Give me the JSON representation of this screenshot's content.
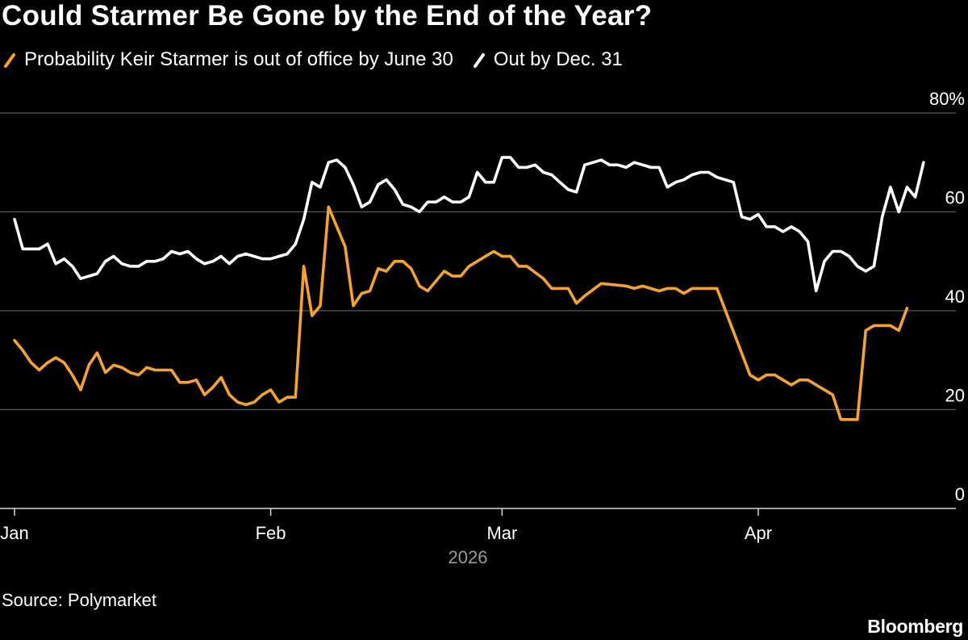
{
  "title": "Could Starmer Be Gone by the End of the Year?",
  "legend": [
    {
      "label": "Probability Keir Starmer is out of office by June 30",
      "color": "#f5a234"
    },
    {
      "label": "Out by Dec. 31",
      "color": "#ffffff"
    }
  ],
  "source": "Source: Polymarket",
  "brand": "Bloomberg",
  "chart_data": {
    "type": "line",
    "title": "Could Starmer Be Gone by the End of the Year?",
    "ylabel": "",
    "xlabel": "2026",
    "ylim": [
      0,
      80
    ],
    "y_ticks": [
      {
        "value": 80,
        "label": "80%"
      },
      {
        "value": 60,
        "label": "60"
      },
      {
        "value": 40,
        "label": "40"
      },
      {
        "value": 20,
        "label": "20"
      },
      {
        "value": 0,
        "label": "0"
      }
    ],
    "x_ticks": [
      {
        "date": "2026-01-01",
        "label": "Jan"
      },
      {
        "date": "2026-02-01",
        "label": "Feb"
      },
      {
        "date": "2026-03-01",
        "label": "Mar"
      },
      {
        "date": "2026-04-01",
        "label": "Apr"
      }
    ],
    "x_range": [
      "2026-01-01",
      "2026-04-20"
    ],
    "grid": true,
    "legend_position": "top",
    "series": [
      {
        "name": "Probability Keir Starmer is out of office by June 30",
        "color": "#f5a234",
        "points": [
          [
            "2026-01-01",
            34
          ],
          [
            "2026-01-02",
            32
          ],
          [
            "2026-01-03",
            29.5
          ],
          [
            "2026-01-04",
            28
          ],
          [
            "2026-01-05",
            29.5
          ],
          [
            "2026-01-06",
            30.5
          ],
          [
            "2026-01-07",
            29.5
          ],
          [
            "2026-01-08",
            27
          ],
          [
            "2026-01-09",
            24
          ],
          [
            "2026-01-10",
            29
          ],
          [
            "2026-01-11",
            31.5
          ],
          [
            "2026-01-12",
            27.5
          ],
          [
            "2026-01-13",
            29
          ],
          [
            "2026-01-14",
            28.5
          ],
          [
            "2026-01-15",
            27.5
          ],
          [
            "2026-01-16",
            27
          ],
          [
            "2026-01-17",
            28.5
          ],
          [
            "2026-01-18",
            28
          ],
          [
            "2026-01-19",
            28
          ],
          [
            "2026-01-20",
            28
          ],
          [
            "2026-01-21",
            25.5
          ],
          [
            "2026-01-22",
            25.5
          ],
          [
            "2026-01-23",
            26
          ],
          [
            "2026-01-24",
            23
          ],
          [
            "2026-01-25",
            24.5
          ],
          [
            "2026-01-26",
            26.5
          ],
          [
            "2026-01-27",
            23
          ],
          [
            "2026-01-28",
            21.5
          ],
          [
            "2026-01-29",
            21
          ],
          [
            "2026-01-30",
            21.5
          ],
          [
            "2026-01-31",
            23
          ],
          [
            "2026-02-01",
            24
          ],
          [
            "2026-02-02",
            21.5
          ],
          [
            "2026-02-03",
            22.5
          ],
          [
            "2026-02-04",
            22.5
          ],
          [
            "2026-02-05",
            49
          ],
          [
            "2026-02-06",
            39
          ],
          [
            "2026-02-07",
            41
          ],
          [
            "2026-02-08",
            61
          ],
          [
            "2026-02-10",
            53
          ],
          [
            "2026-02-11",
            41
          ],
          [
            "2026-02-12",
            43.5
          ],
          [
            "2026-02-13",
            44
          ],
          [
            "2026-02-14",
            48.5
          ],
          [
            "2026-02-15",
            48
          ],
          [
            "2026-02-16",
            50
          ],
          [
            "2026-02-17",
            50
          ],
          [
            "2026-02-18",
            48.5
          ],
          [
            "2026-02-19",
            45
          ],
          [
            "2026-02-20",
            44
          ],
          [
            "2026-02-22",
            48
          ],
          [
            "2026-02-23",
            47
          ],
          [
            "2026-02-24",
            47
          ],
          [
            "2026-02-25",
            49
          ],
          [
            "2026-02-27",
            51
          ],
          [
            "2026-02-28",
            52
          ],
          [
            "2026-03-01",
            51
          ],
          [
            "2026-03-02",
            51
          ],
          [
            "2026-03-03",
            49
          ],
          [
            "2026-03-04",
            49
          ],
          [
            "2026-03-06",
            46.5
          ],
          [
            "2026-03-07",
            44.5
          ],
          [
            "2026-03-09",
            44.5
          ],
          [
            "2026-03-10",
            41.5
          ],
          [
            "2026-03-11",
            43
          ],
          [
            "2026-03-13",
            45.5
          ],
          [
            "2026-03-16",
            45
          ],
          [
            "2026-03-17",
            44.5
          ],
          [
            "2026-03-18",
            45
          ],
          [
            "2026-03-20",
            44
          ],
          [
            "2026-03-21",
            44.5
          ],
          [
            "2026-03-22",
            44.5
          ],
          [
            "2026-03-23",
            43.5
          ],
          [
            "2026-03-24",
            44.5
          ],
          [
            "2026-03-27",
            44.5
          ],
          [
            "2026-03-31",
            27
          ],
          [
            "2026-04-01",
            26
          ],
          [
            "2026-04-02",
            27
          ],
          [
            "2026-04-03",
            27
          ],
          [
            "2026-04-04",
            26
          ],
          [
            "2026-04-05",
            25
          ],
          [
            "2026-04-06",
            26
          ],
          [
            "2026-04-07",
            26
          ],
          [
            "2026-04-10",
            23
          ],
          [
            "2026-04-11",
            18
          ],
          [
            "2026-04-13",
            18
          ],
          [
            "2026-04-14",
            36
          ],
          [
            "2026-04-15",
            37
          ],
          [
            "2026-04-17",
            37
          ],
          [
            "2026-04-18",
            36
          ],
          [
            "2026-04-19",
            40.5
          ]
        ]
      },
      {
        "name": "Out by Dec. 31",
        "color": "#ffffff",
        "points": [
          [
            "2026-01-01",
            58.5
          ],
          [
            "2026-01-02",
            52.5
          ],
          [
            "2026-01-03",
            52.5
          ],
          [
            "2026-01-04",
            52.5
          ],
          [
            "2026-01-05",
            53.5
          ],
          [
            "2026-01-06",
            49.5
          ],
          [
            "2026-01-07",
            50.5
          ],
          [
            "2026-01-08",
            49
          ],
          [
            "2026-01-09",
            46.5
          ],
          [
            "2026-01-10",
            47
          ],
          [
            "2026-01-11",
            47.5
          ],
          [
            "2026-01-12",
            50
          ],
          [
            "2026-01-13",
            51
          ],
          [
            "2026-01-14",
            49.5
          ],
          [
            "2026-01-15",
            49
          ],
          [
            "2026-01-16",
            49
          ],
          [
            "2026-01-17",
            50
          ],
          [
            "2026-01-18",
            50
          ],
          [
            "2026-01-19",
            50.5
          ],
          [
            "2026-01-20",
            52
          ],
          [
            "2026-01-21",
            51.5
          ],
          [
            "2026-01-22",
            52
          ],
          [
            "2026-01-23",
            50.5
          ],
          [
            "2026-01-24",
            49.5
          ],
          [
            "2026-01-25",
            50
          ],
          [
            "2026-01-26",
            51
          ],
          [
            "2026-01-27",
            49.5
          ],
          [
            "2026-01-28",
            51
          ],
          [
            "2026-01-29",
            51.5
          ],
          [
            "2026-01-30",
            51
          ],
          [
            "2026-01-31",
            50.5
          ],
          [
            "2026-02-01",
            50.5
          ],
          [
            "2026-02-02",
            51
          ],
          [
            "2026-02-03",
            51.5
          ],
          [
            "2026-02-04",
            53.5
          ],
          [
            "2026-02-05",
            58.5
          ],
          [
            "2026-02-06",
            66
          ],
          [
            "2026-02-07",
            65
          ],
          [
            "2026-02-08",
            70
          ],
          [
            "2026-02-09",
            70.5
          ],
          [
            "2026-02-10",
            69
          ],
          [
            "2026-02-11",
            65.5
          ],
          [
            "2026-02-12",
            61
          ],
          [
            "2026-02-13",
            62
          ],
          [
            "2026-02-14",
            65.5
          ],
          [
            "2026-02-15",
            66.5
          ],
          [
            "2026-02-16",
            64.5
          ],
          [
            "2026-02-17",
            61.5
          ],
          [
            "2026-02-18",
            61
          ],
          [
            "2026-02-19",
            60
          ],
          [
            "2026-02-20",
            62
          ],
          [
            "2026-02-21",
            62
          ],
          [
            "2026-02-22",
            63
          ],
          [
            "2026-02-23",
            62
          ],
          [
            "2026-02-24",
            62
          ],
          [
            "2026-02-25",
            63
          ],
          [
            "2026-02-26",
            68
          ],
          [
            "2026-02-27",
            66
          ],
          [
            "2026-02-28",
            66
          ],
          [
            "2026-03-01",
            71
          ],
          [
            "2026-03-02",
            71
          ],
          [
            "2026-03-03",
            69
          ],
          [
            "2026-03-04",
            69
          ],
          [
            "2026-03-05",
            69.5
          ],
          [
            "2026-03-06",
            68
          ],
          [
            "2026-03-07",
            67.5
          ],
          [
            "2026-03-08",
            66
          ],
          [
            "2026-03-09",
            64.5
          ],
          [
            "2026-03-10",
            64
          ],
          [
            "2026-03-11",
            69.5
          ],
          [
            "2026-03-12",
            70
          ],
          [
            "2026-03-13",
            70.5
          ],
          [
            "2026-03-14",
            69.5
          ],
          [
            "2026-03-15",
            69.5
          ],
          [
            "2026-03-16",
            69
          ],
          [
            "2026-03-17",
            70
          ],
          [
            "2026-03-18",
            69.5
          ],
          [
            "2026-03-19",
            69
          ],
          [
            "2026-03-20",
            69
          ],
          [
            "2026-03-21",
            65
          ],
          [
            "2026-03-22",
            66
          ],
          [
            "2026-03-23",
            66.5
          ],
          [
            "2026-03-24",
            67.5
          ],
          [
            "2026-03-25",
            68
          ],
          [
            "2026-03-26",
            68
          ],
          [
            "2026-03-27",
            67
          ],
          [
            "2026-03-28",
            66.5
          ],
          [
            "2026-03-29",
            66
          ],
          [
            "2026-03-30",
            59
          ],
          [
            "2026-03-31",
            58.5
          ],
          [
            "2026-04-01",
            59.5
          ],
          [
            "2026-04-02",
            57
          ],
          [
            "2026-04-03",
            57
          ],
          [
            "2026-04-04",
            56
          ],
          [
            "2026-04-05",
            57
          ],
          [
            "2026-04-06",
            56
          ],
          [
            "2026-04-07",
            54
          ],
          [
            "2026-04-08",
            44
          ],
          [
            "2026-04-09",
            50
          ],
          [
            "2026-04-10",
            52
          ],
          [
            "2026-04-11",
            52
          ],
          [
            "2026-04-12",
            51
          ],
          [
            "2026-04-13",
            49
          ],
          [
            "2026-04-14",
            48
          ],
          [
            "2026-04-15",
            49
          ],
          [
            "2026-04-16",
            59
          ],
          [
            "2026-04-17",
            65
          ],
          [
            "2026-04-18",
            60
          ],
          [
            "2026-04-19",
            65
          ],
          [
            "2026-04-20",
            63
          ],
          [
            "2026-04-21",
            70
          ]
        ]
      }
    ]
  }
}
